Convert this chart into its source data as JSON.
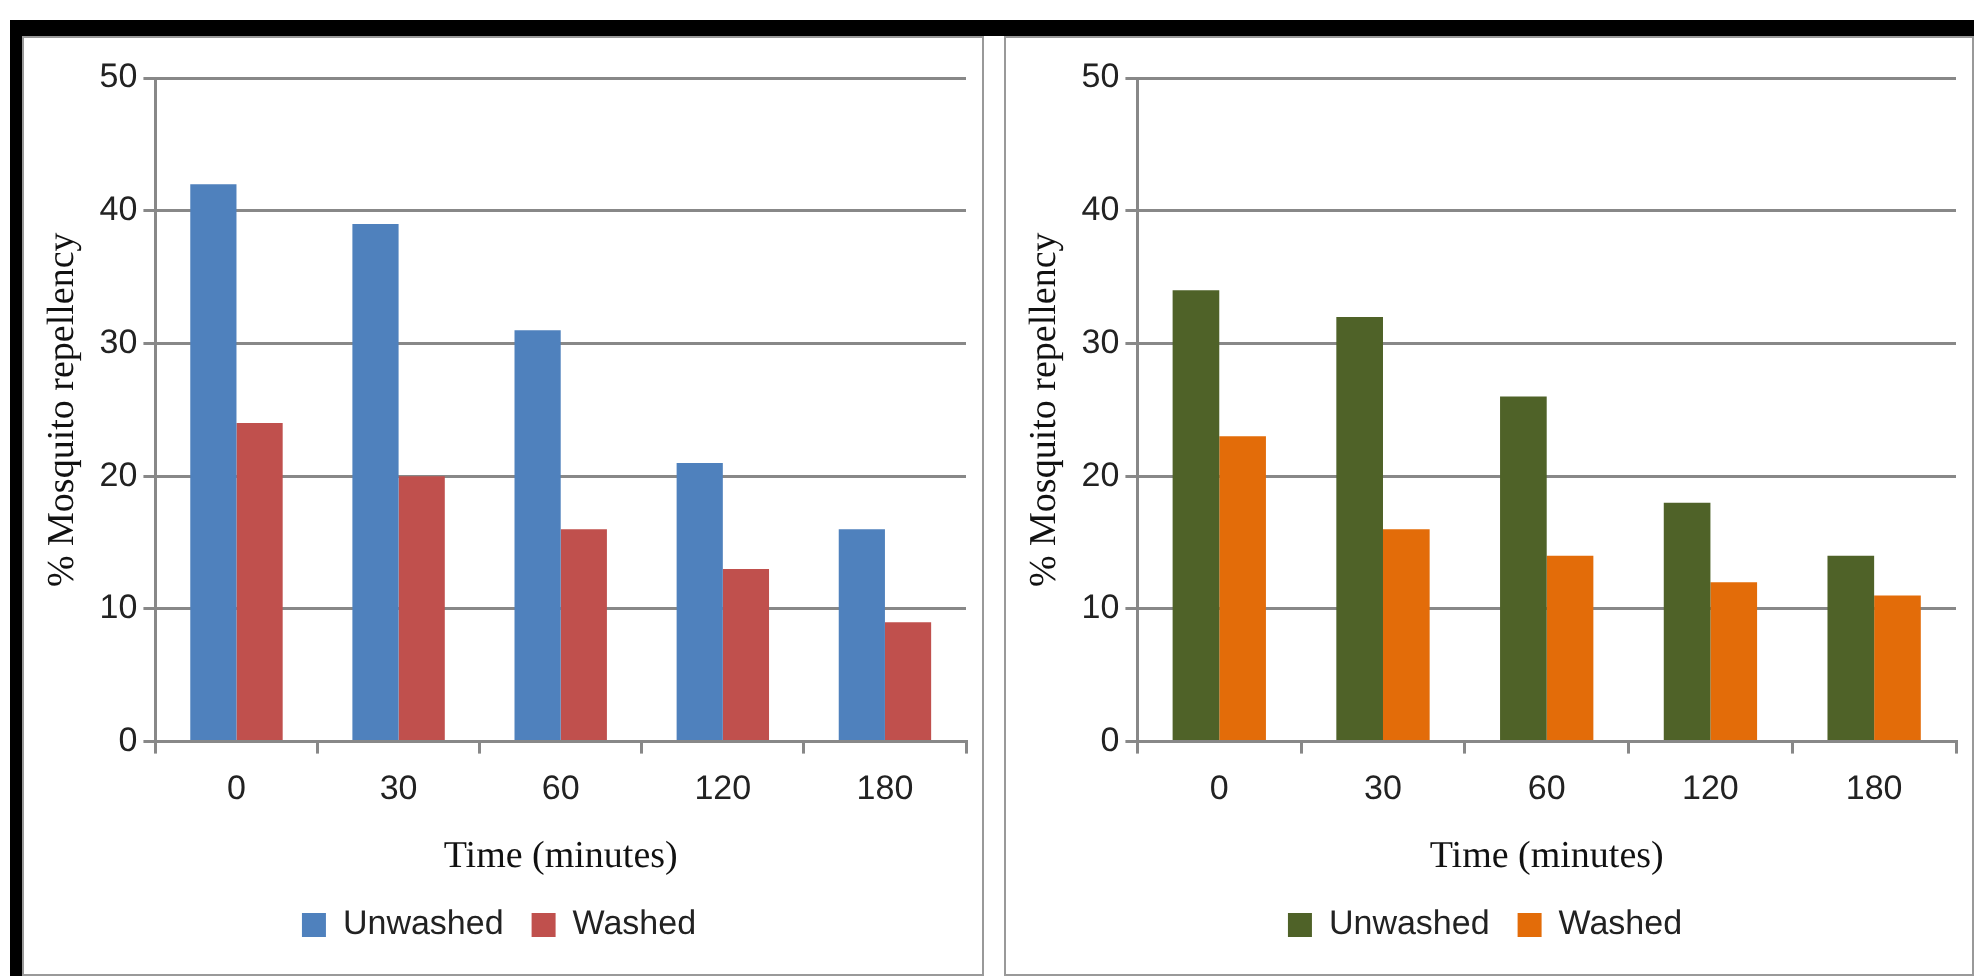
{
  "chart_data": [
    {
      "type": "bar",
      "xlabel": "Time (minutes)",
      "ylabel": "% Mosquito repellency",
      "categories": [
        "0",
        "30",
        "60",
        "120",
        "180"
      ],
      "series": [
        {
          "name": "Unwashed",
          "color": "#4f81bd",
          "values": [
            42,
            39,
            31,
            21,
            16
          ]
        },
        {
          "name": "Washed",
          "color": "#c0504d",
          "values": [
            24,
            20,
            16,
            13,
            9
          ]
        }
      ],
      "ylim": [
        0,
        50
      ],
      "yticks": [
        0,
        10,
        20,
        30,
        40,
        50
      ],
      "grid": "y",
      "legend": "bottom"
    },
    {
      "type": "bar",
      "xlabel": "Time (minutes)",
      "ylabel": "% Mosquito repellency",
      "categories": [
        "0",
        "30",
        "60",
        "120",
        "180"
      ],
      "series": [
        {
          "name": "Unwashed",
          "color": "#4f6228",
          "values": [
            34,
            32,
            26,
            18,
            14
          ]
        },
        {
          "name": "Washed",
          "color": "#e36c09",
          "values": [
            23,
            16,
            14,
            12,
            11
          ]
        }
      ],
      "ylim": [
        0,
        50
      ],
      "yticks": [
        0,
        10,
        20,
        30,
        40,
        50
      ],
      "grid": "y",
      "legend": "bottom"
    }
  ]
}
